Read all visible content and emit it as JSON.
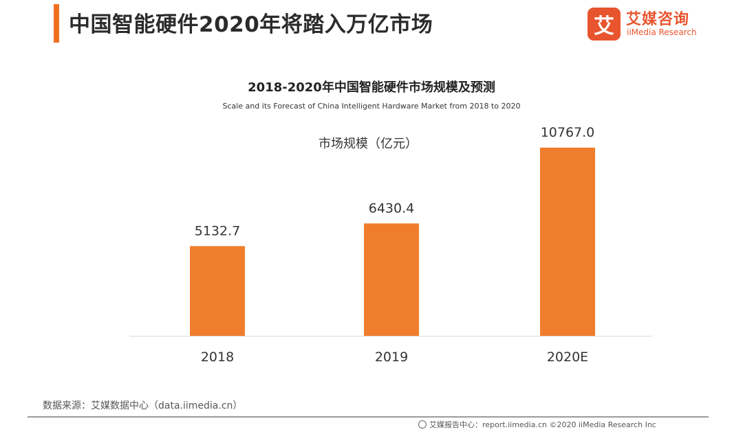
{
  "header": {
    "title": "中国智能硬件2020年将踏入万亿市场",
    "accent_color": "#f07023"
  },
  "logo": {
    "mark": "艾",
    "name_cn": "艾媒咨询",
    "name_en": "iiMedia Research",
    "color": "#e8542e"
  },
  "chart_data": {
    "type": "bar",
    "title": "2018-2020年中国智能硬件市场规模及预测",
    "subtitle": "Scale and its Forecast of China Intelligent Hardware Market from 2018 to 2020",
    "legend": "市场规模（亿元）",
    "categories": [
      "2018",
      "2019",
      "2020E"
    ],
    "values": [
      5132.7,
      6430.4,
      10767.0
    ],
    "data_labels": [
      "5132.7",
      "6430.4",
      "10767.0"
    ],
    "bar_color": "#f07d2c",
    "ylim": [
      0,
      11000
    ],
    "grid": false
  },
  "source": "数据来源：艾媒数据中心（data.iimedia.cn）",
  "footer": "艾媒报告中心：report.iimedia.cn ©2020 iiMedia Research Inc"
}
